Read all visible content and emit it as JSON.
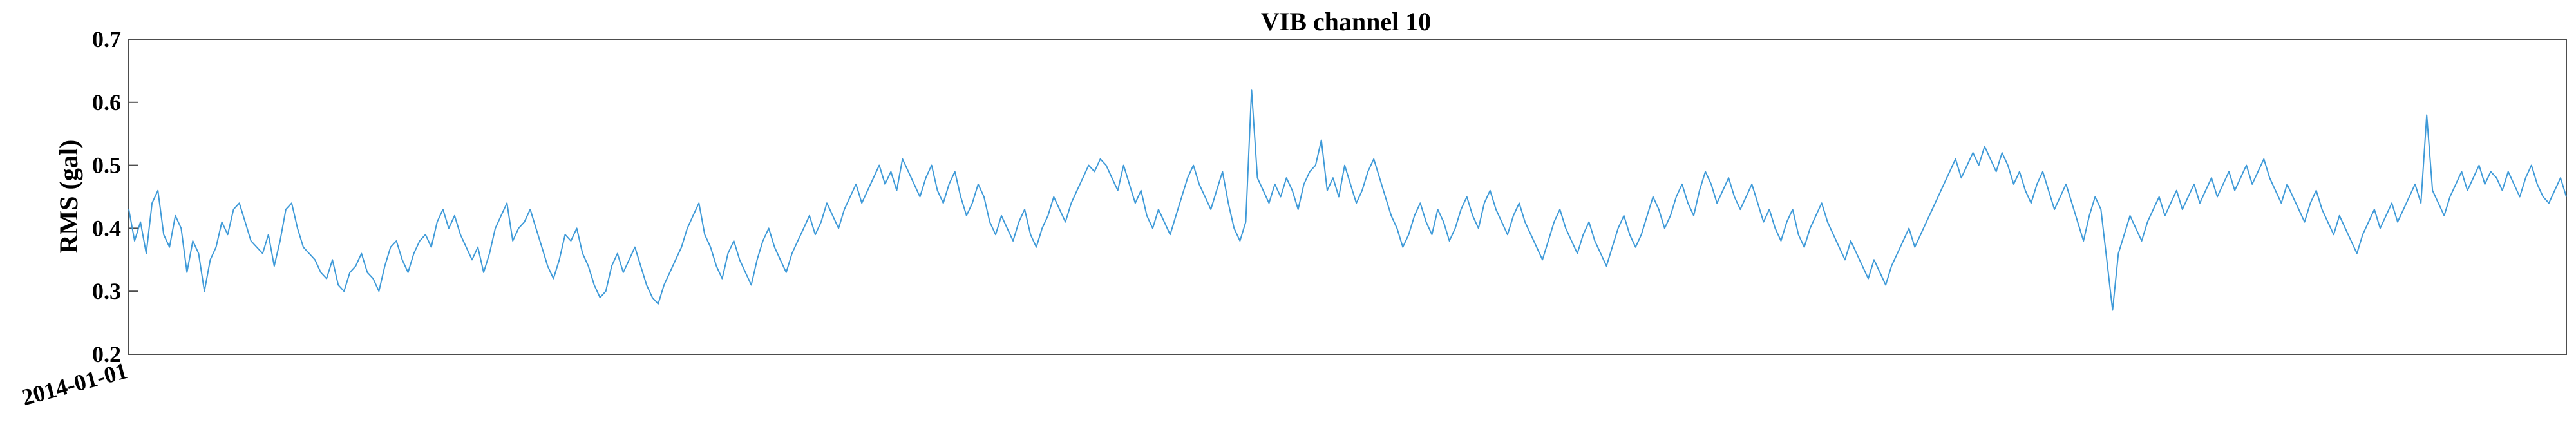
{
  "chart_data": {
    "type": "line",
    "title": "VIB channel 10",
    "xlabel": "",
    "ylabel": "RMS (gal)",
    "ylim": [
      0.2,
      0.7
    ],
    "yticks": [
      "0.2",
      "0.3",
      "0.4",
      "0.5",
      "0.6",
      "0.7"
    ],
    "xtick_labels": [
      "2014-01-01"
    ],
    "grid": false,
    "legend": "none",
    "line_color": "#3f9ad8",
    "series": [
      {
        "x_start": "2014-01-01",
        "x_step": "1 day",
        "values": [
          0.43,
          0.38,
          0.41,
          0.36,
          0.44,
          0.46,
          0.39,
          0.37,
          0.42,
          0.4,
          0.33,
          0.38,
          0.36,
          0.3,
          0.35,
          0.37,
          0.41,
          0.39,
          0.43,
          0.44,
          0.41,
          0.38,
          0.37,
          0.36,
          0.39,
          0.34,
          0.38,
          0.43,
          0.44,
          0.4,
          0.37,
          0.36,
          0.35,
          0.33,
          0.32,
          0.35,
          0.31,
          0.3,
          0.33,
          0.34,
          0.36,
          0.33,
          0.32,
          0.3,
          0.34,
          0.37,
          0.38,
          0.35,
          0.33,
          0.36,
          0.38,
          0.39,
          0.37,
          0.41,
          0.43,
          0.4,
          0.42,
          0.39,
          0.37,
          0.35,
          0.37,
          0.33,
          0.36,
          0.4,
          0.42,
          0.44,
          0.38,
          0.4,
          0.41,
          0.43,
          0.4,
          0.37,
          0.34,
          0.32,
          0.35,
          0.39,
          0.38,
          0.4,
          0.36,
          0.34,
          0.31,
          0.29,
          0.3,
          0.34,
          0.36,
          0.33,
          0.35,
          0.37,
          0.34,
          0.31,
          0.29,
          0.28,
          0.31,
          0.33,
          0.35,
          0.37,
          0.4,
          0.42,
          0.44,
          0.39,
          0.37,
          0.34,
          0.32,
          0.36,
          0.38,
          0.35,
          0.33,
          0.31,
          0.35,
          0.38,
          0.4,
          0.37,
          0.35,
          0.33,
          0.36,
          0.38,
          0.4,
          0.42,
          0.39,
          0.41,
          0.44,
          0.42,
          0.4,
          0.43,
          0.45,
          0.47,
          0.44,
          0.46,
          0.48,
          0.5,
          0.47,
          0.49,
          0.46,
          0.51,
          0.49,
          0.47,
          0.45,
          0.48,
          0.5,
          0.46,
          0.44,
          0.47,
          0.49,
          0.45,
          0.42,
          0.44,
          0.47,
          0.45,
          0.41,
          0.39,
          0.42,
          0.4,
          0.38,
          0.41,
          0.43,
          0.39,
          0.37,
          0.4,
          0.42,
          0.45,
          0.43,
          0.41,
          0.44,
          0.46,
          0.48,
          0.5,
          0.49,
          0.51,
          0.5,
          0.48,
          0.46,
          0.5,
          0.47,
          0.44,
          0.46,
          0.42,
          0.4,
          0.43,
          0.41,
          0.39,
          0.42,
          0.45,
          0.48,
          0.5,
          0.47,
          0.45,
          0.43,
          0.46,
          0.49,
          0.44,
          0.4,
          0.38,
          0.41,
          0.62,
          0.48,
          0.46,
          0.44,
          0.47,
          0.45,
          0.48,
          0.46,
          0.43,
          0.47,
          0.49,
          0.5,
          0.54,
          0.46,
          0.48,
          0.45,
          0.5,
          0.47,
          0.44,
          0.46,
          0.49,
          0.51,
          0.48,
          0.45,
          0.42,
          0.4,
          0.37,
          0.39,
          0.42,
          0.44,
          0.41,
          0.39,
          0.43,
          0.41,
          0.38,
          0.4,
          0.43,
          0.45,
          0.42,
          0.4,
          0.44,
          0.46,
          0.43,
          0.41,
          0.39,
          0.42,
          0.44,
          0.41,
          0.39,
          0.37,
          0.35,
          0.38,
          0.41,
          0.43,
          0.4,
          0.38,
          0.36,
          0.39,
          0.41,
          0.38,
          0.36,
          0.34,
          0.37,
          0.4,
          0.42,
          0.39,
          0.37,
          0.39,
          0.42,
          0.45,
          0.43,
          0.4,
          0.42,
          0.45,
          0.47,
          0.44,
          0.42,
          0.46,
          0.49,
          0.47,
          0.44,
          0.46,
          0.48,
          0.45,
          0.43,
          0.45,
          0.47,
          0.44,
          0.41,
          0.43,
          0.4,
          0.38,
          0.41,
          0.43,
          0.39,
          0.37,
          0.4,
          0.42,
          0.44,
          0.41,
          0.39,
          0.37,
          0.35,
          0.38,
          0.36,
          0.34,
          0.32,
          0.35,
          0.33,
          0.31,
          0.34,
          0.36,
          0.38,
          0.4,
          0.37,
          0.39,
          0.41,
          0.43,
          0.45,
          0.47,
          0.49,
          0.51,
          0.48,
          0.5,
          0.52,
          0.5,
          0.53,
          0.51,
          0.49,
          0.52,
          0.5,
          0.47,
          0.49,
          0.46,
          0.44,
          0.47,
          0.49,
          0.46,
          0.43,
          0.45,
          0.47,
          0.44,
          0.41,
          0.38,
          0.42,
          0.45,
          0.43,
          0.35,
          0.27,
          0.36,
          0.39,
          0.42,
          0.4,
          0.38,
          0.41,
          0.43,
          0.45,
          0.42,
          0.44,
          0.46,
          0.43,
          0.45,
          0.47,
          0.44,
          0.46,
          0.48,
          0.45,
          0.47,
          0.49,
          0.46,
          0.48,
          0.5,
          0.47,
          0.49,
          0.51,
          0.48,
          0.46,
          0.44,
          0.47,
          0.45,
          0.43,
          0.41,
          0.44,
          0.46,
          0.43,
          0.41,
          0.39,
          0.42,
          0.4,
          0.38,
          0.36,
          0.39,
          0.41,
          0.43,
          0.4,
          0.42,
          0.44,
          0.41,
          0.43,
          0.45,
          0.47,
          0.44,
          0.58,
          0.46,
          0.44,
          0.42,
          0.45,
          0.47,
          0.49,
          0.46,
          0.48,
          0.5,
          0.47,
          0.49,
          0.48,
          0.46,
          0.49,
          0.47,
          0.45,
          0.48,
          0.5,
          0.47,
          0.45,
          0.44,
          0.46,
          0.48,
          0.45
        ]
      }
    ]
  }
}
